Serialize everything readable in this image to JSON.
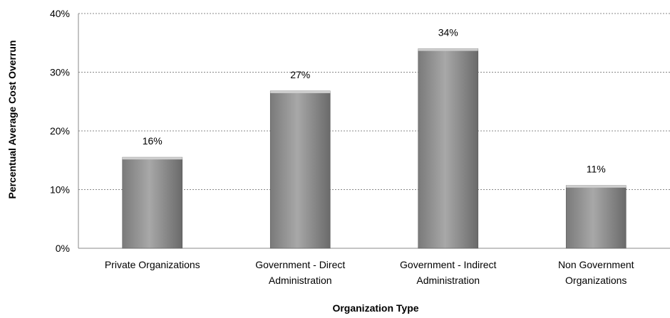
{
  "chart_data": {
    "type": "bar",
    "categories": [
      "Private Organizations",
      "Government - Direct Administration",
      "Government - Indirect Administration",
      "Non Government Organizations"
    ],
    "category_lines": [
      [
        "Private Organizations"
      ],
      [
        "Government - Direct",
        "Administration"
      ],
      [
        "Government - Indirect",
        "Administration"
      ],
      [
        "Non Government",
        "Organizations"
      ]
    ],
    "values": [
      15.5,
      26.8,
      34,
      10.7
    ],
    "data_labels": [
      "16%",
      "27%",
      "34%",
      "11%"
    ],
    "title": "",
    "xlabel": "Organization Type",
    "ylabel": "Percentual Average Cost Overrun",
    "ylim": [
      0,
      40
    ],
    "yticks": [
      0,
      10,
      20,
      30,
      40
    ],
    "ytick_labels": [
      "0%",
      "10%",
      "20%",
      "30%",
      "40%"
    ],
    "grid": true,
    "grid_style": "dotted",
    "legend": "none",
    "colors": {
      "bar_light": "#bdbdbd",
      "bar_mid": "#9a9a9a",
      "bar_dark": "#6e6e6e",
      "grid": "#888888",
      "axis": "#888888"
    }
  }
}
